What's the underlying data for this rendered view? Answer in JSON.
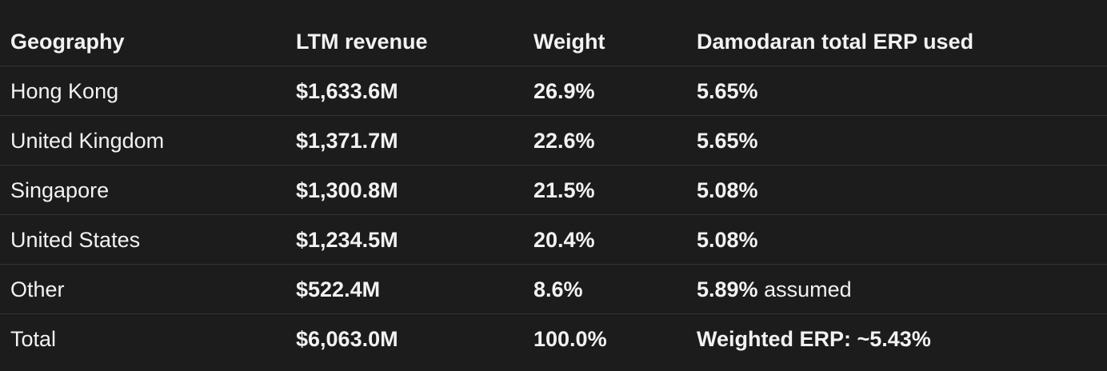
{
  "table": {
    "headers": [
      "Geography",
      "LTM revenue",
      "Weight",
      "Damodaran total ERP used"
    ],
    "rows": [
      {
        "geo": "Hong Kong",
        "revenue": "$1,633.6M",
        "weight": "26.9%",
        "erp": "5.65%",
        "erp_note": ""
      },
      {
        "geo": "United Kingdom",
        "revenue": "$1,371.7M",
        "weight": "22.6%",
        "erp": "5.65%",
        "erp_note": ""
      },
      {
        "geo": "Singapore",
        "revenue": "$1,300.8M",
        "weight": "21.5%",
        "erp": "5.08%",
        "erp_note": ""
      },
      {
        "geo": "United States",
        "revenue": "$1,234.5M",
        "weight": "20.4%",
        "erp": "5.08%",
        "erp_note": ""
      },
      {
        "geo": "Other",
        "revenue": "$522.4M",
        "weight": "8.6%",
        "erp": "5.89%",
        "erp_note": " assumed"
      }
    ],
    "total": {
      "geo": "Total",
      "revenue": "$6,063.0M",
      "weight": "100.0%",
      "erp": "Weighted ERP: ~5.43%"
    }
  }
}
